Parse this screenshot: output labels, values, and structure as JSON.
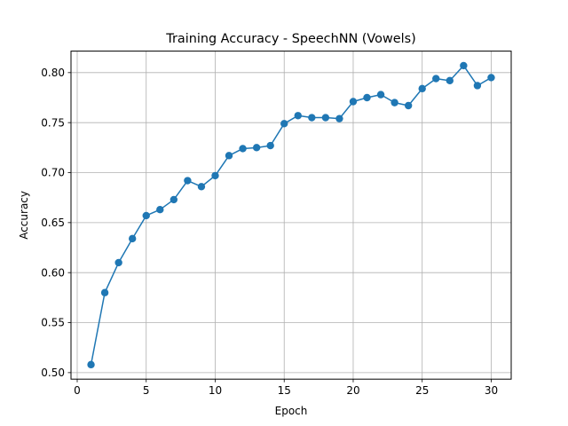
{
  "chart_data": {
    "type": "line",
    "title": "Training Accuracy - SpeechNN (Vowels)",
    "xlabel": "Epoch",
    "ylabel": "Accuracy",
    "xlim": [
      -0.45,
      31.45
    ],
    "ylim": [
      0.4935,
      0.8215
    ],
    "xticks": [
      0,
      5,
      10,
      15,
      20,
      25,
      30
    ],
    "xtick_labels": [
      "0",
      "5",
      "10",
      "15",
      "20",
      "25",
      "30"
    ],
    "yticks": [
      0.5,
      0.55,
      0.6,
      0.65,
      0.7,
      0.75,
      0.8
    ],
    "ytick_labels": [
      "0.50",
      "0.55",
      "0.60",
      "0.65",
      "0.70",
      "0.75",
      "0.80"
    ],
    "grid": true,
    "color": "#1f77b4",
    "marker": "circle",
    "x": [
      1,
      2,
      3,
      4,
      5,
      6,
      7,
      8,
      9,
      10,
      11,
      12,
      13,
      14,
      15,
      16,
      17,
      18,
      19,
      20,
      21,
      22,
      23,
      24,
      25,
      26,
      27,
      28,
      29,
      30
    ],
    "y": [
      0.508,
      0.58,
      0.61,
      0.634,
      0.657,
      0.663,
      0.673,
      0.692,
      0.686,
      0.697,
      0.717,
      0.724,
      0.725,
      0.727,
      0.749,
      0.757,
      0.755,
      0.755,
      0.754,
      0.771,
      0.775,
      0.778,
      0.77,
      0.767,
      0.784,
      0.794,
      0.792,
      0.807,
      0.787,
      0.795
    ]
  }
}
